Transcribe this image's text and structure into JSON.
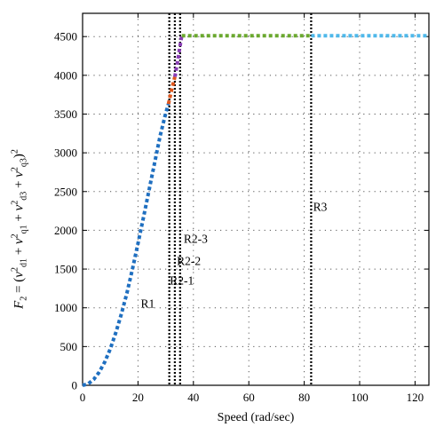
{
  "chart_data": {
    "type": "line",
    "xlabel": "Speed (rad/sec)",
    "ylabel": "F2 = (v_d1^2 + v_q1^2 + v_d3^2 + v_q3^2)^2",
    "xlim": [
      0,
      125
    ],
    "ylim": [
      0,
      4800
    ],
    "xticks": [
      0,
      20,
      40,
      60,
      80,
      100,
      120
    ],
    "yticks": [
      0,
      500,
      1000,
      1500,
      2000,
      2500,
      3000,
      3500,
      4000,
      4500
    ],
    "grid": true,
    "line_style": "dotted",
    "series": [
      {
        "color": "#1f6fc0",
        "x": [
          0,
          2,
          4,
          6,
          8,
          10,
          12,
          14,
          16,
          18,
          20,
          22,
          24,
          26,
          28,
          30,
          31
        ],
        "y": [
          0,
          18,
          75,
          170,
          300,
          470,
          680,
          920,
          1190,
          1500,
          1830,
          2170,
          2520,
          2870,
          3220,
          3510,
          3630
        ]
      },
      {
        "color": "#e0561b",
        "x": [
          31,
          31.8,
          32.6,
          33.3
        ],
        "y": [
          3630,
          3760,
          3880,
          3980
        ]
      },
      {
        "color": "#8a3fb5",
        "x": [
          33.3,
          34.2,
          35,
          35.8
        ],
        "y": [
          3980,
          4160,
          4340,
          4510
        ]
      },
      {
        "color": "#6aa82e",
        "x": [
          35.8,
          50,
          65,
          82.5
        ],
        "y": [
          4510,
          4510,
          4510,
          4510
        ]
      },
      {
        "color": "#4fb8ea",
        "x": [
          82.5,
          100,
          115,
          125
        ],
        "y": [
          4510,
          4510,
          4510,
          4510
        ]
      }
    ],
    "vlines": [
      31.3,
      33.3,
      35.2,
      82.5
    ],
    "annotations": [
      {
        "text": "R1",
        "x": 21,
        "y": 1000
      },
      {
        "text": "R2-1",
        "x": 31.5,
        "y": 1300
      },
      {
        "text": "R2-2",
        "x": 34,
        "y": 1550
      },
      {
        "text": "R2-3",
        "x": 36.5,
        "y": 1840
      },
      {
        "text": "R3",
        "x": 83.2,
        "y": 2250
      }
    ]
  }
}
